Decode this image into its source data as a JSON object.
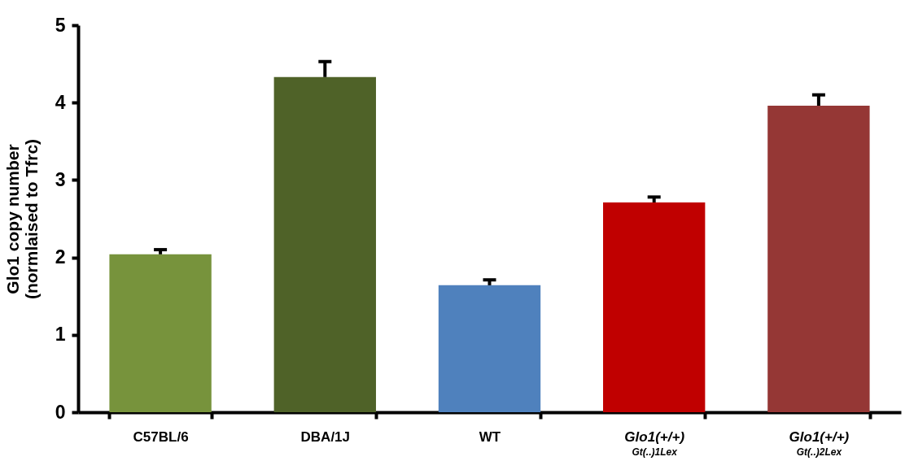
{
  "chart_data": {
    "type": "bar",
    "ylabel": "Glo1 copy number\n(normlaised to Tfrc)",
    "categories": [
      "C57BL/6",
      "DBA/1J",
      "WT",
      "Glo1(+/+)$_{Gt(..)1Lex}$",
      "Glo1(+/+)$_{Gt(..)2Lex}$"
    ],
    "values": [
      2.04,
      4.33,
      1.64,
      2.71,
      3.96
    ],
    "colors": [
      "#77933c",
      "#4f6228",
      "#4f81bd",
      "#c00000",
      "#953735"
    ],
    "errors": [
      [
        2.04,
        2.1
      ],
      [
        4.33,
        4.53
      ],
      [
        1.64,
        1.71
      ],
      [
        2.71,
        2.78
      ],
      [
        3.96,
        4.1
      ]
    ],
    "ylim": [
      0,
      5
    ],
    "yticks": [
      0,
      1,
      2,
      3,
      4,
      5
    ],
    "grid": false
  }
}
